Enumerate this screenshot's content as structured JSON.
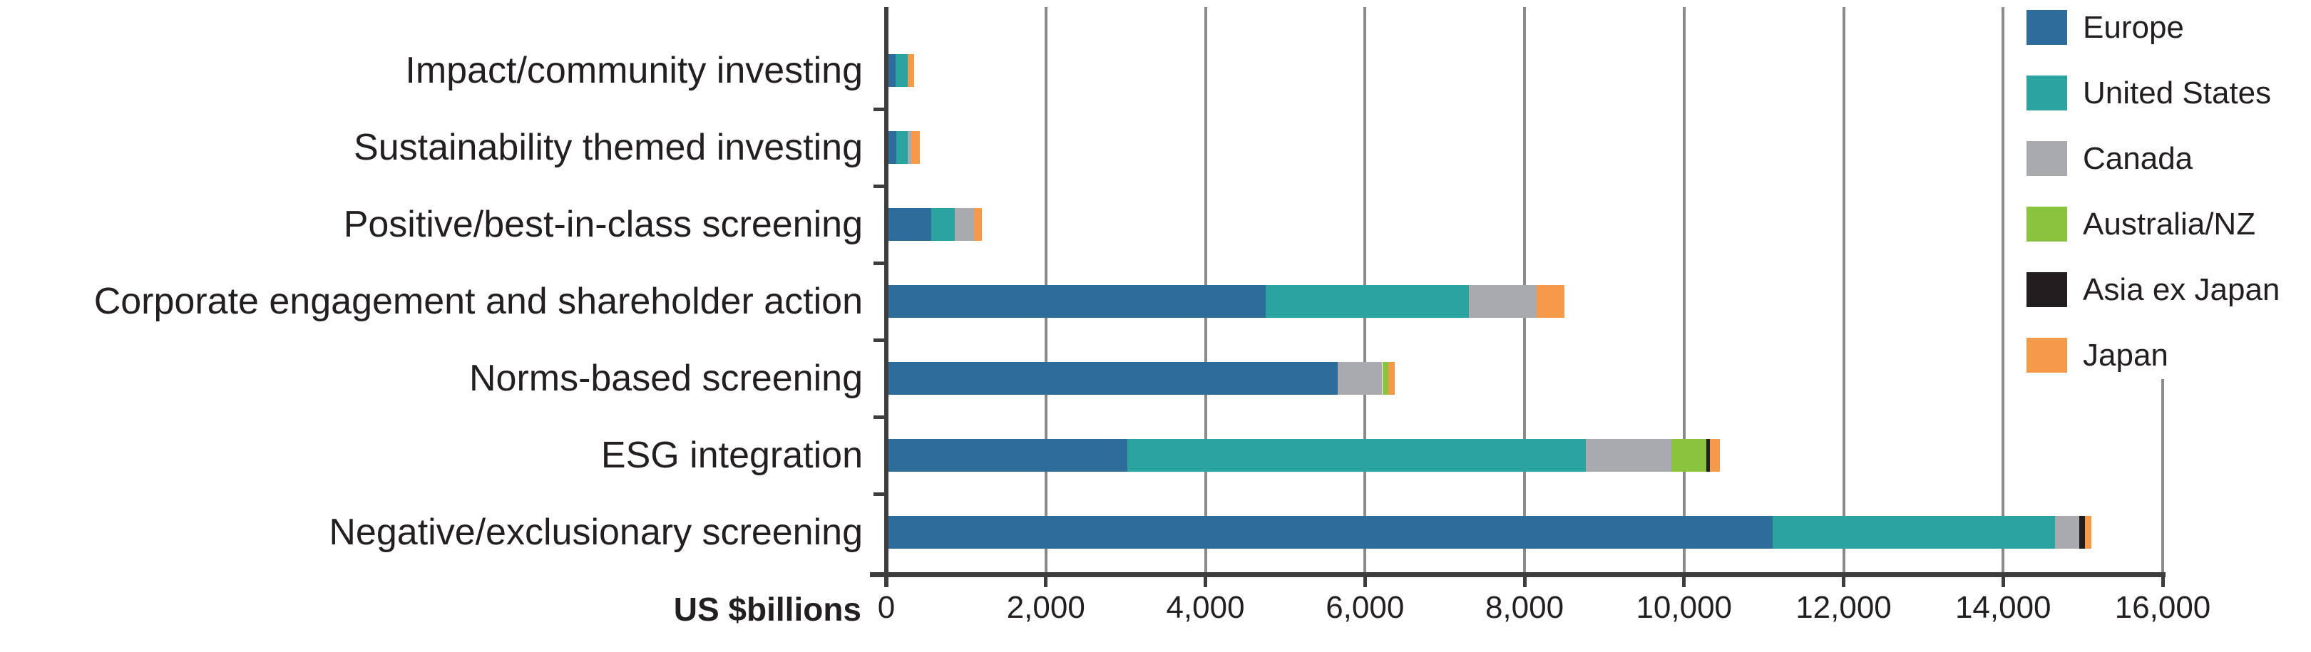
{
  "figure": {
    "x_axis_title": "US $billions"
  },
  "chart_data": {
    "type": "bar",
    "orientation": "horizontal",
    "stacked": true,
    "title": "",
    "xlabel": "US $billions",
    "ylabel": "",
    "xlim": [
      0,
      16000
    ],
    "xticks": [
      0,
      2000,
      4000,
      6000,
      8000,
      10000,
      12000,
      14000,
      16000
    ],
    "x_tick_labels": [
      "0",
      "2,000",
      "4,000",
      "6,000",
      "8,000",
      "10,000",
      "12,000",
      "14,000",
      "16,000"
    ],
    "grid": true,
    "legend_position": "top-right",
    "categories": [
      "Impact/community investing",
      "Sustainability themed investing",
      "Positive/best-in-class screening",
      "Corporate engagement and shareholder action",
      "Norms-based screening",
      "ESG integration",
      "Negative/exclusionary screening"
    ],
    "series": [
      {
        "name": "Europe",
        "color": "#2d6c9b",
        "values": [
          90,
          95,
          540,
          4725,
          5630,
          2990,
          11080
        ]
      },
      {
        "name": "United States",
        "color": "#2ba4a1",
        "values": [
          155,
          145,
          290,
          2550,
          0,
          5755,
          3545
        ]
      },
      {
        "name": "Canada",
        "color": "#a8aaad",
        "values": [
          0,
          50,
          245,
          850,
          560,
          1070,
          305
        ]
      },
      {
        "name": "Australia/NZ",
        "color": "#8ac43f",
        "values": [
          0,
          0,
          0,
          0,
          80,
          440,
          0
        ]
      },
      {
        "name": "Asia ex Japan",
        "color": "#221e1f",
        "values": [
          0,
          0,
          0,
          0,
          0,
          45,
          70
        ]
      },
      {
        "name": "Japan",
        "color": "#f49a4a",
        "values": [
          80,
          100,
          95,
          350,
          80,
          125,
          75
        ]
      }
    ],
    "category_totals": [
      325,
      390,
      1170,
      8475,
      6350,
      10425,
      15075
    ],
    "axis_color": "#3d3d3d",
    "gridline_color": "#8a8a8a",
    "text_color": "#231f20"
  }
}
